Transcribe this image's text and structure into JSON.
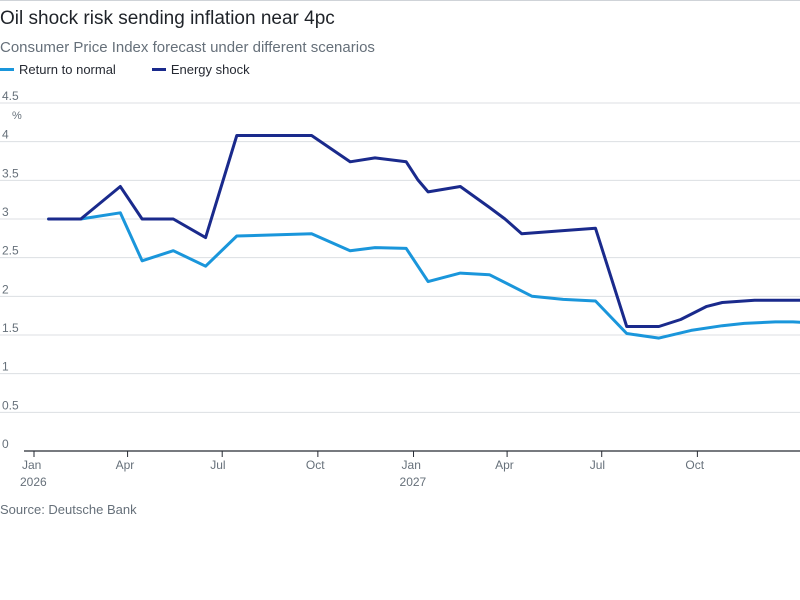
{
  "title": "Oil shock risk sending inflation near 4pc",
  "subtitle": "Consumer Price Index forecast under different scenarios",
  "source": "Source: Deutsche Bank",
  "colors": {
    "return_to_normal": "#1a96db",
    "energy_shock": "#1a2a8c",
    "grid": "#dcdfe3",
    "axis": "#262a33"
  },
  "chart_data": {
    "type": "line",
    "ylabel": "%",
    "ylim": [
      0,
      4.5
    ],
    "yticks": [
      "0",
      "0.5",
      "1",
      "1.5",
      "2",
      "2.5",
      "3",
      "3.5",
      "4",
      "4.5"
    ],
    "xlim": [
      "2026-01-01",
      "2027-12-31"
    ],
    "xticks": [
      {
        "date": "2026-01-01",
        "label": "Jan",
        "year": "2026"
      },
      {
        "date": "2026-04-01",
        "label": "Apr"
      },
      {
        "date": "2026-07-01",
        "label": "Jul"
      },
      {
        "date": "2026-10-01",
        "label": "Oct"
      },
      {
        "date": "2027-01-01",
        "label": "Jan",
        "year": "2027"
      },
      {
        "date": "2027-04-01",
        "label": "Apr"
      },
      {
        "date": "2027-07-01",
        "label": "Jul"
      },
      {
        "date": "2027-10-01",
        "label": "Oct"
      }
    ],
    "grid": true,
    "legend_position": "top-left",
    "series": [
      {
        "name": "Return to normal",
        "color": "#1a96db",
        "points": [
          [
            "2026-01-15",
            3.0
          ],
          [
            "2026-02-15",
            3.0
          ],
          [
            "2026-03-25",
            3.08
          ],
          [
            "2026-04-15",
            2.46
          ],
          [
            "2026-05-15",
            2.59
          ],
          [
            "2026-06-15",
            2.39
          ],
          [
            "2026-07-15",
            2.78
          ],
          [
            "2026-09-25",
            2.81
          ],
          [
            "2026-11-01",
            2.59
          ],
          [
            "2026-11-25",
            2.63
          ],
          [
            "2026-12-25",
            2.62
          ],
          [
            "2027-01-15",
            2.19
          ],
          [
            "2027-02-15",
            2.3
          ],
          [
            "2027-03-15",
            2.28
          ],
          [
            "2027-04-25",
            2.0
          ],
          [
            "2027-05-25",
            1.96
          ],
          [
            "2027-06-25",
            1.94
          ],
          [
            "2027-07-25",
            1.52
          ],
          [
            "2027-08-25",
            1.46
          ],
          [
            "2027-09-25",
            1.56
          ],
          [
            "2027-10-25",
            1.62
          ],
          [
            "2027-11-15",
            1.65
          ],
          [
            "2027-12-15",
            1.67
          ],
          [
            "2028-01-01",
            1.67
          ],
          [
            "2028-01-15",
            1.66
          ]
        ]
      },
      {
        "name": "Energy shock",
        "color": "#1a2a8c",
        "points": [
          [
            "2026-01-15",
            3.0
          ],
          [
            "2026-02-15",
            3.0
          ],
          [
            "2026-03-25",
            3.42
          ],
          [
            "2026-04-15",
            3.0
          ],
          [
            "2026-05-15",
            3.0
          ],
          [
            "2026-06-15",
            2.76
          ],
          [
            "2026-07-15",
            4.08
          ],
          [
            "2026-09-25",
            4.08
          ],
          [
            "2026-11-01",
            3.74
          ],
          [
            "2026-11-25",
            3.79
          ],
          [
            "2026-12-25",
            3.74
          ],
          [
            "2027-01-05",
            3.51
          ],
          [
            "2027-01-15",
            3.35
          ],
          [
            "2027-02-15",
            3.42
          ],
          [
            "2027-03-15",
            3.15
          ],
          [
            "2027-03-30",
            3.0
          ],
          [
            "2027-04-15",
            2.81
          ],
          [
            "2027-05-25",
            2.85
          ],
          [
            "2027-06-25",
            2.88
          ],
          [
            "2027-07-25",
            1.61
          ],
          [
            "2027-08-25",
            1.61
          ],
          [
            "2027-09-15",
            1.7
          ],
          [
            "2027-10-10",
            1.87
          ],
          [
            "2027-10-25",
            1.92
          ],
          [
            "2027-11-25",
            1.95
          ],
          [
            "2027-12-15",
            1.95
          ],
          [
            "2028-01-15",
            1.95
          ]
        ]
      }
    ]
  }
}
